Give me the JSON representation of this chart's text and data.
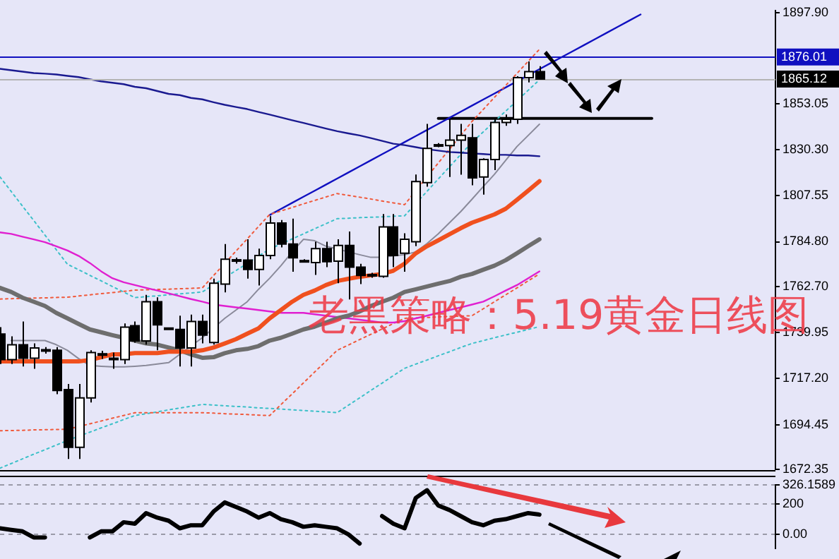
{
  "chart_data": [
    {
      "type": "candlestick",
      "tick_labels": "y",
      "categories": [
        null,
        null,
        null,
        null,
        null,
        null,
        null,
        null,
        null,
        null,
        null,
        null,
        null,
        null,
        null,
        null,
        null,
        null,
        null,
        null,
        null,
        null,
        null,
        null,
        null,
        null,
        null,
        null,
        null,
        null,
        null,
        null,
        null,
        null,
        null,
        null,
        null,
        null,
        null,
        null,
        null,
        null,
        null,
        null,
        null,
        null,
        null,
        null,
        null,
        null,
        null,
        null,
        null,
        null,
        null,
        null,
        null,
        null,
        null,
        null,
        null,
        null,
        null,
        null,
        null,
        null,
        null,
        null,
        null,
        null
      ],
      "ohlc": [
        [
          1739.2,
          1742.6,
          1724.4,
          1726.6
        ],
        [
          1726.6,
          1738.1,
          1724.4,
          1733.9
        ],
        [
          1733.9,
          1745.4,
          1723.2,
          1727.3
        ],
        [
          1727.3,
          1734.6,
          1722.1,
          1732.4
        ],
        [
          1731.5,
          1732.8,
          1729.6,
          1731.2
        ],
        [
          1731.2,
          1732.8,
          1709.5,
          1711.4
        ],
        [
          1711.8,
          1714.6,
          1677.6,
          1683.3
        ],
        [
          1683.3,
          1714.6,
          1677.6,
          1707.7
        ],
        [
          1707.7,
          1731.2,
          1705.4,
          1730.1
        ],
        [
          1729.5,
          1731.0,
          1727.0,
          1729.0
        ],
        [
          1727.3,
          1730.1,
          1722.1,
          1727.0
        ],
        [
          1726.6,
          1744.5,
          1724.4,
          1742.6
        ],
        [
          1743.3,
          1745.4,
          1735.0,
          1735.8
        ],
        [
          1735.8,
          1758.6,
          1734.0,
          1755.2
        ],
        [
          1755.2,
          1757.4,
          1731.2,
          1743.8
        ],
        [
          1742.0,
          1742.5,
          1741.5,
          1742.2
        ],
        [
          1741.5,
          1748.3,
          1723.2,
          1732.4
        ],
        [
          1732.4,
          1748.8,
          1723.2,
          1745.4
        ],
        [
          1745.4,
          1748.8,
          1734.6,
          1738.7
        ],
        [
          1735.1,
          1766.6,
          1734.0,
          1764.3
        ],
        [
          1763.9,
          1783.7,
          1759.8,
          1776.2
        ],
        [
          1775.7,
          1777.0,
          1774.0,
          1775.9
        ],
        [
          1775.7,
          1786.0,
          1766.6,
          1771.1
        ],
        [
          1771.1,
          1781.4,
          1763.2,
          1778.0
        ],
        [
          1778.0,
          1797.4,
          1776.2,
          1794.0
        ],
        [
          1794.0,
          1795.5,
          1782.0,
          1783.7
        ],
        [
          1783.7,
          1796.2,
          1770.0,
          1776.9
        ],
        [
          1775.5,
          1776.2,
          1774.8,
          1775.2
        ],
        [
          1774.5,
          1784.8,
          1768.4,
          1781.4
        ],
        [
          1781.4,
          1784.8,
          1772.3,
          1775.0
        ],
        [
          1775.2,
          1786.0,
          1764.3,
          1783.0
        ],
        [
          1783.0,
          1789.9,
          1756.3,
          1772.3
        ],
        [
          1772.3,
          1773.9,
          1763.9,
          1768.2
        ],
        [
          1768.2,
          1769.5,
          1767.0,
          1768.6
        ],
        [
          1767.7,
          1798.5,
          1767.0,
          1792.1
        ],
        [
          1792.1,
          1798.5,
          1772.3,
          1778.0
        ],
        [
          1779.1,
          1789.0,
          1770.0,
          1786.0
        ],
        [
          1784.8,
          1818.0,
          1782.6,
          1814.5
        ],
        [
          1814.0,
          1843.0,
          1812.0,
          1830.9
        ],
        [
          1832.5,
          1833.5,
          1831.5,
          1832.7
        ],
        [
          1832.3,
          1845.3,
          1816.8,
          1835.0
        ],
        [
          1835.0,
          1843.0,
          1817.9,
          1837.3
        ],
        [
          1836.1,
          1843.0,
          1812.7,
          1816.3
        ],
        [
          1816.8,
          1826.0,
          1808.1,
          1825.4
        ],
        [
          1825.4,
          1845.3,
          1820.2,
          1843.7
        ],
        [
          1843.7,
          1847.6,
          1842.0,
          1845.3
        ],
        [
          1845.3,
          1866.5,
          1843.0,
          1865.8
        ],
        [
          1865.8,
          1873.8,
          1863.5,
          1868.8
        ],
        [
          1868.8,
          1871.5,
          1864.9,
          1865.1
        ],
        null,
        null,
        null,
        null,
        null,
        null,
        null,
        null,
        null,
        null,
        null,
        null,
        null,
        null,
        null,
        null,
        null,
        null,
        null,
        null,
        null
      ],
      "series": [
        {
          "type": "line",
          "color": "#f0501e",
          "values": [
            1725.7,
            1725.7,
            1725.7,
            1725.7,
            1725.7,
            1725.7,
            1725.7,
            1725.7,
            1726.4,
            1727.8,
            1729.2,
            1729.2,
            1729.8,
            1729.8,
            1729.8,
            1730.5,
            1730.5,
            1730.5,
            1731.2,
            1732.6,
            1734.6,
            1736.7,
            1739.4,
            1742.0,
            1747.0,
            1751.1,
            1755.2,
            1758.6,
            1760.7,
            1763.4,
            1765.4,
            1766.5,
            1767.5,
            1768.2,
            1768.9,
            1770.5,
            1774.0,
            1779.1,
            1782.6,
            1785.5,
            1788.5,
            1791.5,
            1794.2,
            1796.2,
            1798.3,
            1801.1,
            1805.5,
            1810.0,
            1814.7,
            null,
            null,
            null,
            null,
            null,
            null,
            null,
            null,
            null,
            null,
            null,
            null,
            null,
            null,
            null,
            null,
            null,
            null,
            null,
            null,
            null
          ]
        },
        {
          "type": "line",
          "color": "#6e6e6e",
          "values": [
            1762.0,
            1760.0,
            1757.2,
            1755.2,
            1753.1,
            1749.7,
            1747.0,
            1744.2,
            1741.5,
            1740.1,
            1738.7,
            1737.4,
            1736.0,
            1734.6,
            1734.0,
            1732.6,
            1731.2,
            1729.2,
            1727.5,
            1727.8,
            1729.8,
            1731.2,
            1731.9,
            1733.3,
            1736.0,
            1737.4,
            1739.4,
            1741.5,
            1742.9,
            1744.9,
            1747.0,
            1748.3,
            1750.4,
            1753.1,
            1755.2,
            1757.2,
            1760.0,
            1761.3,
            1762.7,
            1764.1,
            1765.4,
            1767.5,
            1768.9,
            1771.0,
            1773.0,
            1775.7,
            1779.1,
            1782.6,
            1786.0,
            null,
            null,
            null,
            null,
            null,
            null,
            null,
            null,
            null,
            null,
            null,
            null,
            null,
            null,
            null,
            null,
            null,
            null,
            null,
            null,
            null
          ]
        },
        {
          "type": "line",
          "color": "#e020d0",
          "values": [
            1789.4,
            1788.7,
            1787.3,
            1786.0,
            1784.6,
            1782.6,
            1780.5,
            1777.8,
            1774.3,
            1770.2,
            1766.8,
            1764.8,
            1763.4,
            1762.0,
            1760.7,
            1759.3,
            1757.9,
            1756.5,
            1755.2,
            1753.8,
            1753.1,
            1752.4,
            1751.8,
            1751.1,
            1750.4,
            1749.7,
            1749.7,
            1749.7,
            1749.0,
            1748.3,
            1747.6,
            1747.0,
            1746.3,
            1745.6,
            1744.9,
            1744.9,
            1745.6,
            1747.0,
            1748.3,
            1749.7,
            1751.1,
            1752.4,
            1753.8,
            1755.2,
            1757.9,
            1760.7,
            1763.4,
            1766.8,
            1770.2,
            null,
            null,
            null,
            null,
            null,
            null,
            null,
            null,
            null,
            null,
            null,
            null,
            null,
            null,
            null,
            null,
            null,
            null,
            null,
            null,
            null
          ]
        },
        {
          "type": "line",
          "color": "#1a1a90",
          "values": [
            1870.2,
            1869.5,
            1868.8,
            1868.1,
            1867.8,
            1867.4,
            1866.7,
            1866.1,
            1865.0,
            1864.0,
            1863.3,
            1862.6,
            1861.3,
            1860.6,
            1859.2,
            1857.8,
            1857.2,
            1855.8,
            1855.1,
            1853.7,
            1852.4,
            1851.3,
            1850.3,
            1848.9,
            1847.6,
            1846.2,
            1844.8,
            1843.5,
            1842.1,
            1840.7,
            1839.4,
            1838.3,
            1837.3,
            1836.0,
            1834.6,
            1833.2,
            1832.5,
            1831.5,
            1830.5,
            1829.8,
            1829.1,
            1828.8,
            1828.4,
            1828.1,
            1827.7,
            1827.7,
            1827.4,
            1827.4,
            1827.0,
            null,
            null,
            null,
            null,
            null,
            null,
            null,
            null,
            null,
            null,
            null,
            null,
            null,
            null,
            null,
            null,
            null,
            null,
            null,
            null,
            null
          ]
        },
        {
          "type": "line",
          "color": "#8a8a9a",
          "values": [
            null,
            1736.0,
            1736.0,
            1736.0,
            1736.0,
            1734.0,
            1731.2,
            1727.1,
            1723.7,
            1723.3,
            1723.0,
            1723.0,
            1723.3,
            1723.7,
            1724.4,
            1725.1,
            1729.2,
            1733.3,
            1737.4,
            1742.2,
            1747.0,
            1751.1,
            1755.2,
            1761.3,
            1766.8,
            1773.0,
            1779.8,
            1786.0,
            1785.3,
            1782.6,
            1781.2,
            1779.8,
            1778.4,
            1777.1,
            1777.1,
            1777.8,
            1778.4,
            1779.8,
            1783.9,
            1788.7,
            1794.2,
            1799.7,
            1805.8,
            1812.0,
            1818.1,
            1825.0,
            1831.8,
            1837.3,
            1842.8,
            null,
            null,
            null,
            null,
            null,
            null,
            null,
            null,
            null,
            null,
            null,
            null,
            null,
            null,
            null,
            null,
            null,
            null,
            null,
            null,
            null
          ]
        },
        {
          "type": "line",
          "color": "#f05a3c",
          "line_style": "dotted",
          "values": [
            1756.5,
            1756.7,
            1756.8,
            1757.0,
            1757.1,
            1757.3,
            1757.4,
            1758.0,
            1758.6,
            1759.2,
            1759.7,
            1760.3,
            1760.9,
            1761.1,
            1761.3,
            1761.4,
            1761.6,
            1761.8,
            1762.0,
            1768.1,
            1774.1,
            1780.2,
            1786.2,
            1792.3,
            1798.3,
            1800.0,
            1801.7,
            1803.5,
            1805.2,
            1806.9,
            1808.6,
            1807.7,
            1806.8,
            1805.9,
            1804.9,
            1804.0,
            1803.1,
            1810.0,
            1816.8,
            1823.7,
            1830.5,
            1837.4,
            1844.2,
            1850.1,
            1856.1,
            1862.0,
            1867.9,
            1873.9,
            1879.8,
            null,
            null,
            null,
            null,
            null,
            null,
            null,
            null,
            null,
            null,
            null,
            null,
            null,
            null,
            null,
            null,
            null,
            null,
            null,
            null,
            null
          ]
        },
        {
          "type": "line",
          "color": "#f05a3c",
          "line_style": "dotted",
          "values": [
            1691.5,
            1691.6,
            1691.7,
            1691.9,
            1692.0,
            1692.1,
            1692.2,
            1693.6,
            1694.9,
            1696.3,
            1697.7,
            1699.0,
            1700.4,
            1700.4,
            1700.4,
            1700.4,
            1700.4,
            1700.4,
            1700.4,
            1700.2,
            1699.9,
            1699.7,
            1699.5,
            1699.2,
            1699.0,
            1704.4,
            1709.7,
            1715.1,
            1720.5,
            1725.8,
            1731.2,
            1733.8,
            1736.5,
            1739.1,
            1741.7,
            1744.4,
            1747.0,
            1747.2,
            1747.4,
            1747.7,
            1747.9,
            1748.1,
            1748.3,
            1751.7,
            1755.2,
            1758.6,
            1762.0,
            1765.5,
            1768.9,
            null,
            null,
            null,
            null,
            null,
            null,
            null,
            null,
            null,
            null,
            null,
            null,
            null,
            null,
            null,
            null,
            null,
            null,
            null,
            null,
            null
          ]
        },
        {
          "type": "line",
          "color": "#3cc0c8",
          "line_style": "dotted",
          "values": [
            1816.8,
            1809.6,
            1802.4,
            1795.3,
            1788.1,
            1780.9,
            1773.7,
            1771.0,
            1768.2,
            1765.5,
            1762.7,
            1760.0,
            1757.2,
            1757.7,
            1758.1,
            1758.6,
            1759.1,
            1759.5,
            1760.0,
            1763.5,
            1767.1,
            1770.6,
            1774.1,
            1777.7,
            1781.2,
            1783.7,
            1786.2,
            1788.7,
            1791.2,
            1793.7,
            1796.2,
            1796.4,
            1796.7,
            1796.9,
            1797.1,
            1797.4,
            1797.6,
            1803.7,
            1809.7,
            1815.8,
            1821.8,
            1827.9,
            1833.9,
            1839.0,
            1844.2,
            1849.3,
            1854.4,
            1859.6,
            1864.7,
            null,
            null,
            null,
            null,
            null,
            null,
            null,
            null,
            null,
            null,
            null,
            null,
            null,
            null,
            null,
            null,
            null,
            null,
            null,
            null,
            null
          ]
        },
        {
          "type": "line",
          "color": "#3cc0c8",
          "line_style": "dotted",
          "values": [
            1673.0,
            1675.3,
            1677.6,
            1679.9,
            1682.1,
            1684.4,
            1686.7,
            1688.8,
            1690.8,
            1692.9,
            1694.9,
            1697.0,
            1699.0,
            1699.9,
            1700.8,
            1701.8,
            1702.7,
            1703.6,
            1704.5,
            1704.2,
            1703.8,
            1703.5,
            1703.2,
            1702.8,
            1702.5,
            1702.2,
            1701.8,
            1701.5,
            1701.1,
            1700.8,
            1700.4,
            1704.1,
            1707.7,
            1711.4,
            1715.0,
            1718.7,
            1722.3,
            1724.4,
            1726.4,
            1728.5,
            1730.5,
            1732.6,
            1734.6,
            1736.0,
            1737.4,
            1738.8,
            1740.1,
            1741.5,
            1742.9,
            null,
            null,
            null,
            null,
            null,
            null,
            null,
            null,
            null,
            null,
            null,
            null,
            null,
            null,
            null,
            null,
            null,
            null,
            null,
            null,
            null
          ]
        },
        {
          "type": "line",
          "color": "#1010c0",
          "values": [
            null,
            null,
            null,
            null,
            null,
            null,
            null,
            null,
            null,
            null,
            null,
            null,
            null,
            null,
            null,
            null,
            null,
            null,
            null,
            null,
            null,
            null,
            null,
            null,
            1798,
            1801,
            1804,
            1807,
            1810,
            1813,
            1816,
            1819,
            1822,
            1825,
            1828,
            1831,
            1834,
            1837,
            1840,
            1843,
            1846,
            1849,
            1852,
            1855,
            1858,
            1861,
            1864,
            1867,
            1870,
            1873,
            1876,
            1879,
            1882,
            1885,
            1888,
            1891,
            1894,
            1897,
            null,
            null,
            null,
            null,
            null,
            null,
            null,
            null,
            null,
            null,
            null,
            null
          ]
        },
        {
          "type": "line",
          "color": "#000000",
          "values": [
            null,
            null,
            null,
            null,
            null,
            null,
            null,
            null,
            null,
            null,
            null,
            null,
            null,
            null,
            null,
            null,
            null,
            null,
            null,
            null,
            null,
            null,
            null,
            null,
            null,
            null,
            null,
            null,
            null,
            null,
            null,
            null,
            null,
            null,
            null,
            null,
            null,
            null,
            null,
            1845.7,
            1845.7,
            1845.7,
            1845.7,
            1845.7,
            1845.7,
            1845.7,
            1845.7,
            1845.7,
            1845.7,
            1845.7,
            1845.7,
            1845.7,
            1845.7,
            1845.7,
            1845.7,
            1845.7,
            1845.7,
            1845.7,
            1845.7,
            null,
            null,
            null,
            null,
            null,
            null,
            null,
            null,
            null,
            null,
            null
          ]
        }
      ],
      "ylim": [
        1672.35,
        1899
      ],
      "yticks": [
        {
          "value": 1897.9,
          "label": "1897.90"
        },
        1853.05,
        {
          "value": 1830.3,
          "label": "1830.30"
        },
        1807.55,
        {
          "value": 1784.8,
          "label": "1784.80"
        },
        {
          "value": 1762.7,
          "label": "1762.70"
        },
        1739.95,
        {
          "value": 1717.2,
          "label": "1717.20"
        },
        1694.45,
        1672.35
      ],
      "ref_lines": [
        {
          "axis": "y",
          "value": 1876.01,
          "label": "1876.01",
          "color": "#1010c0"
        },
        {
          "axis": "y",
          "value": 1865.12,
          "label": "1865.12",
          "color": "#b4b4b4"
        }
      ],
      "annotations": [
        "老黑策略：5.19黄金日线图"
      ]
    },
    {
      "type": "line",
      "tick_labels": "y",
      "grid": "y",
      "categories": [
        null,
        null,
        null,
        null,
        null,
        null,
        null,
        null,
        null,
        null,
        null,
        null,
        null,
        null,
        null,
        null,
        null,
        null,
        null,
        null,
        null,
        null,
        null,
        null,
        null,
        null,
        null,
        null,
        null,
        null,
        null,
        null,
        null,
        null,
        null,
        null,
        null,
        null,
        null,
        null,
        null,
        null,
        null,
        null,
        null,
        null,
        null,
        null,
        null,
        null,
        null,
        null,
        null,
        null,
        null,
        null,
        null,
        null,
        null,
        null,
        null,
        null,
        null,
        null,
        null,
        null,
        null,
        null,
        null,
        null
      ],
      "series": [
        {
          "color": "#000000",
          "values": [
            40,
            30,
            20,
            -20,
            -20,
            null,
            null,
            null,
            -20,
            20,
            20,
            80,
            70,
            140,
            110,
            90,
            40,
            60,
            60,
            150,
            210,
            180,
            150,
            110,
            140,
            100,
            80,
            50,
            60,
            50,
            40,
            0,
            -60,
            null,
            120,
            70,
            40,
            240,
            290,
            190,
            160,
            120,
            80,
            60,
            90,
            100,
            120,
            140,
            130,
            null,
            null,
            null,
            null,
            null,
            null,
            null,
            null,
            null,
            null,
            null,
            null,
            null,
            null,
            null,
            null,
            null,
            null,
            null,
            null,
            null
          ]
        }
      ],
      "ylim": [
        -93,
        326.1589
      ],
      "yticks": [
        326.1589,
        200,
        {
          "value": 0,
          "label": "0.00"
        }
      ]
    }
  ]
}
